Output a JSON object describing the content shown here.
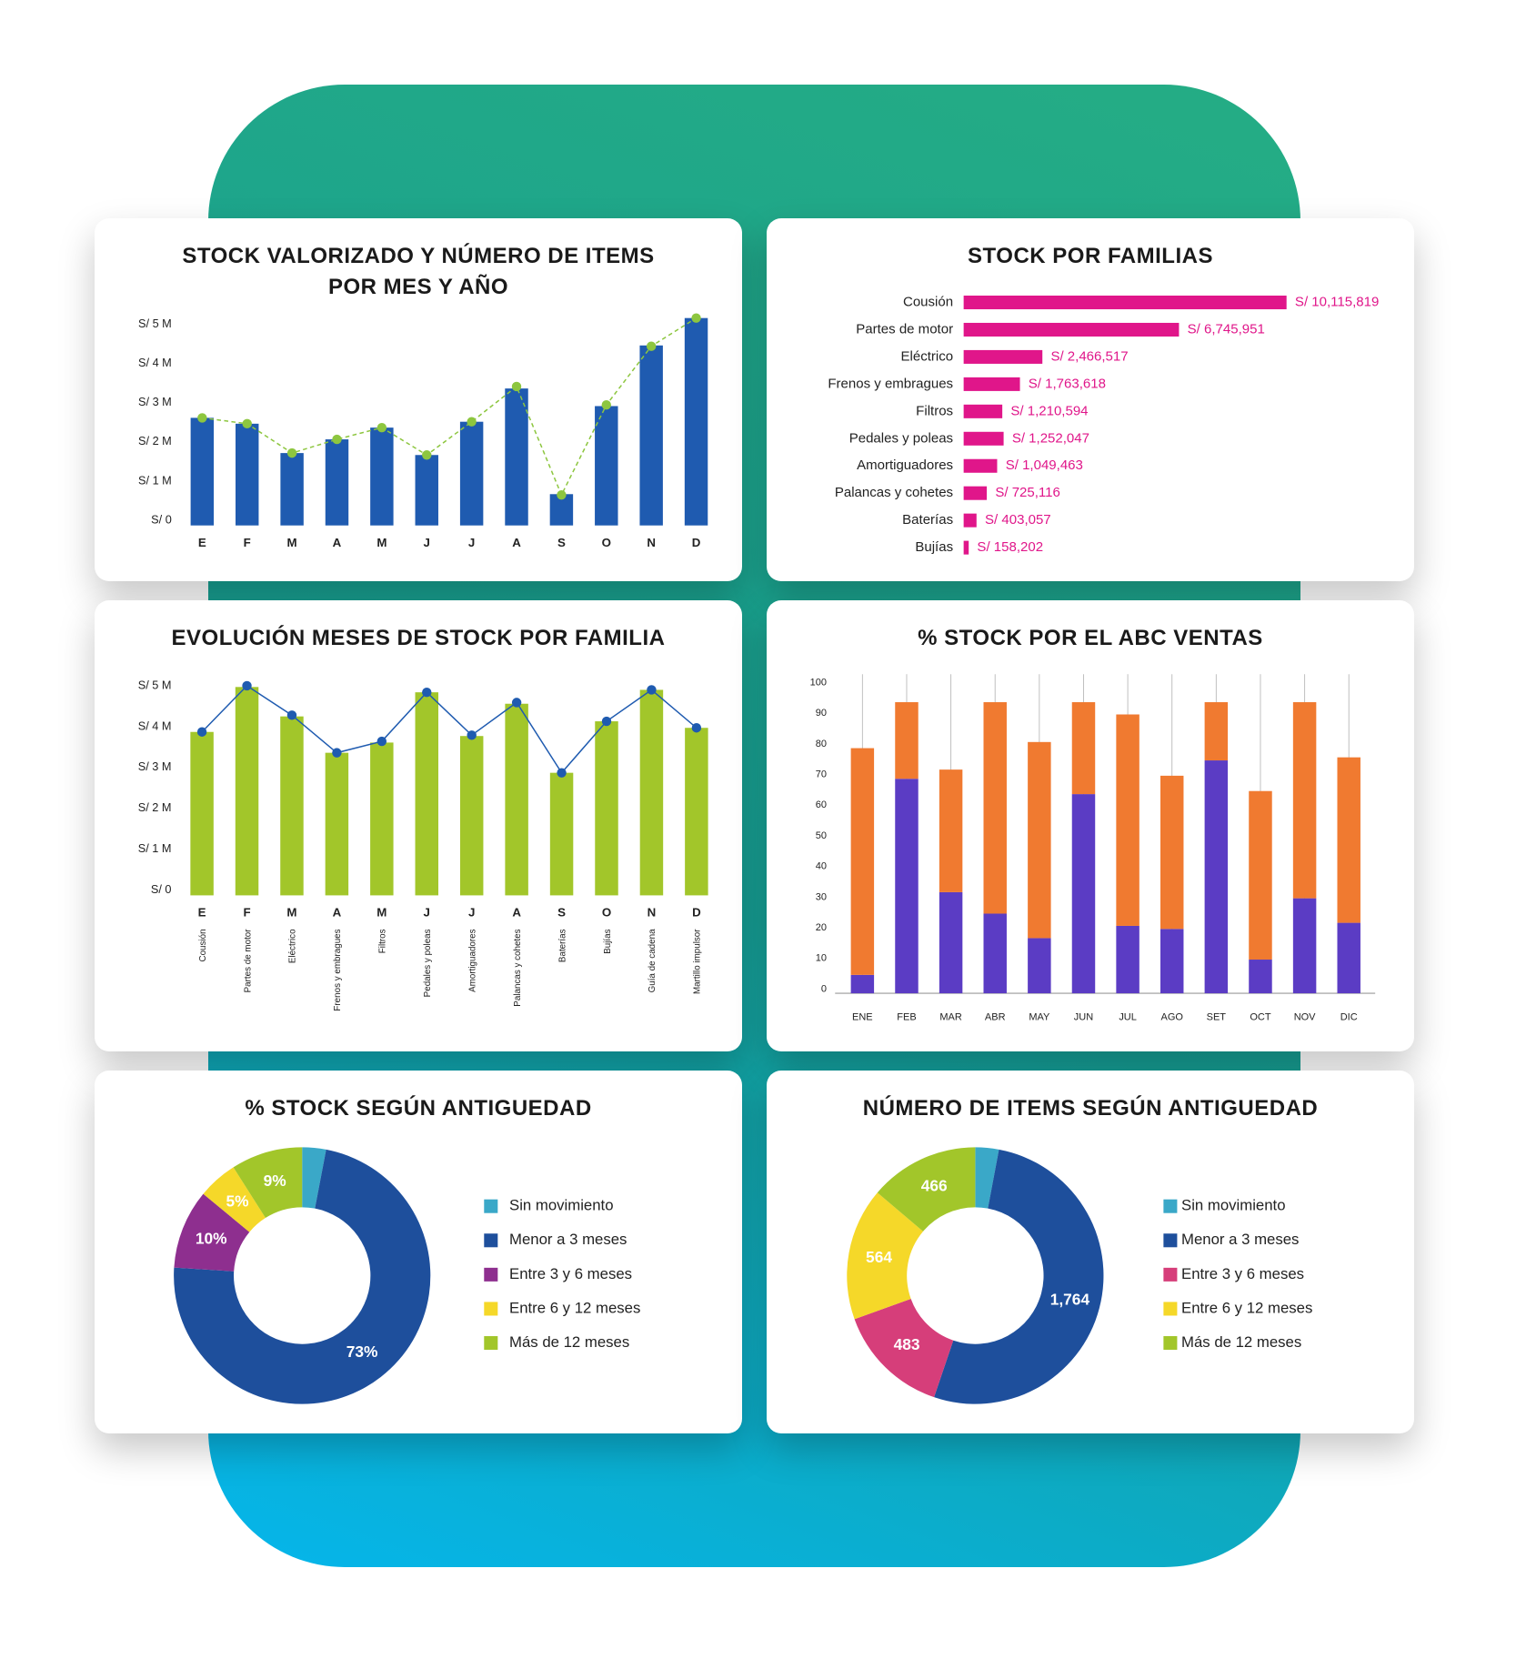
{
  "chart_data": [
    {
      "type": "combo",
      "title": "STOCK VALORIZADO Y NÚMERO DE ITEMS POR MES Y AÑO",
      "categories": [
        "E",
        "F",
        "M",
        "A",
        "M",
        "J",
        "J",
        "A",
        "S",
        "O",
        "N",
        "D"
      ],
      "series": [
        {
          "kind": "bar",
          "color": "#1f5bb0",
          "values": [
            2.75,
            2.6,
            1.85,
            2.2,
            2.5,
            1.8,
            2.65,
            3.5,
            0.8,
            3.05,
            4.6,
            5.3
          ]
        },
        {
          "kind": "line",
          "color": "#8dc63f",
          "line_style": "dashed",
          "values": [
            2.75,
            2.6,
            1.85,
            2.2,
            2.5,
            1.8,
            2.65,
            3.55,
            0.78,
            3.08,
            4.58,
            5.3
          ]
        }
      ],
      "ylim": [
        0,
        5.4
      ],
      "yticks": [
        {
          "value": 0,
          "label": "S/ 0"
        },
        {
          "value": 1,
          "label": "S/ 1 M"
        },
        {
          "value": 2,
          "label": "S/ 2 M"
        },
        {
          "value": 3,
          "label": "S/ 3 M"
        },
        {
          "value": 4,
          "label": "S/ 4 M"
        },
        {
          "value": 5,
          "label": "S/ 5 M"
        }
      ]
    },
    {
      "type": "hbar",
      "title": "STOCK POR FAMILIAS",
      "categories": [
        "Cousión",
        "Partes de motor",
        "Eléctrico",
        "Frenos y embragues",
        "Filtros",
        "Pedales y poleas",
        "Amortiguadores",
        "Palancas y cohetes",
        "Baterías",
        "Bujías"
      ],
      "values": [
        10115819,
        6745951,
        2466517,
        1763618,
        1210594,
        1252047,
        1049463,
        725116,
        403057,
        158202
      ],
      "value_labels": [
        "S/ 10,115,819",
        "S/ 6,745,951",
        "S/ 2,466,517",
        "S/ 1,763,618",
        "S/ 1,210,594",
        "S/ 1,252,047",
        "S/ 1,049,463",
        "S/ 725,116",
        "S/ 403,057",
        "S/ 158,202"
      ],
      "color": "#e0168a"
    },
    {
      "type": "combo",
      "title": "EVOLUCIÓN MESES DE STOCK POR FAMILIA",
      "categories": [
        "E",
        "F",
        "M",
        "A",
        "M",
        "J",
        "J",
        "A",
        "S",
        "O",
        "N",
        "D"
      ],
      "families": [
        "Cousión",
        "Partes de motor",
        "Eléctrico",
        "Frenos y embragues",
        "Filtros",
        "Pedales y poleas",
        "Amortiguadores",
        "Palancas y cohetes",
        "Baterías",
        "Bujías",
        "Guía de cadena",
        "Martillo impulsor"
      ],
      "series": [
        {
          "kind": "bar",
          "color": "#a2c62a",
          "values": [
            4.0,
            5.1,
            4.38,
            3.49,
            3.74,
            4.97,
            3.9,
            4.69,
            3.0,
            4.26,
            5.03,
            4.1
          ]
        },
        {
          "kind": "line",
          "color": "#1f5bb0",
          "line_style": "solid",
          "values": [
            4.0,
            5.13,
            4.41,
            3.49,
            3.77,
            4.97,
            3.92,
            4.72,
            3.0,
            4.26,
            5.03,
            4.1
          ]
        }
      ],
      "ylim": [
        0,
        5.4
      ],
      "yticks": [
        {
          "value": 0,
          "label": "S/ 0"
        },
        {
          "value": 1,
          "label": "S/ 1 M"
        },
        {
          "value": 2,
          "label": "S/ 2 M"
        },
        {
          "value": 3,
          "label": "S/ 3 M"
        },
        {
          "value": 4,
          "label": "S/ 4 M"
        },
        {
          "value": 5,
          "label": "S/ 5 M"
        }
      ]
    },
    {
      "type": "stacked",
      "title": "% STOCK POR EL ABC VENTAS",
      "categories": [
        "ENE",
        "FEB",
        "MAR",
        "ABR",
        "MAY",
        "JUN",
        "JUL",
        "AGO",
        "SET",
        "OCT",
        "NOV",
        "DIC"
      ],
      "series": [
        {
          "color": "#5b3cc4",
          "values": [
            6,
            70,
            33,
            26,
            18,
            65,
            22,
            21,
            76,
            11,
            31,
            23
          ]
        },
        {
          "color": "#f07a30",
          "values": [
            74,
            25,
            40,
            69,
            64,
            30,
            69,
            50,
            19,
            55,
            64,
            54
          ]
        }
      ],
      "ylim": [
        0,
        100
      ],
      "yticks": [
        0,
        10,
        20,
        30,
        40,
        50,
        60,
        70,
        80,
        90,
        100
      ],
      "grid": true
    },
    {
      "type": "donut",
      "title": "% STOCK SEGÚN ANTIGUEDAD",
      "categories": [
        "Sin movimiento",
        "Menor a 3 meses",
        "Entre 3 y 6 meses",
        "Entre 6 y 12 meses",
        "Más de 12 meses"
      ],
      "values": [
        3,
        73,
        10,
        5,
        9
      ],
      "value_labels": [
        null,
        "73%",
        "10%",
        "5%",
        "9%"
      ],
      "colors": [
        "#3aa8c8",
        "#1e4f9c",
        "#8e2f8f",
        "#f5d829",
        "#a2c62a"
      ]
    },
    {
      "type": "donut",
      "title": "NÚMERO DE ITEMS SEGÚN ANTIGUEDAD",
      "categories": [
        "Sin movimiento",
        "Menor a 3 meses",
        "Entre 3 y 6 meses",
        "Entre 6 y 12 meses",
        "Más de 12 meses"
      ],
      "values": [
        100,
        1764,
        483,
        564,
        466
      ],
      "value_labels": [
        null,
        "1,764",
        "483",
        "564",
        "466"
      ],
      "colors": [
        "#3aa8c8",
        "#1e4f9c",
        "#d63e7a",
        "#f5d829",
        "#a2c62a"
      ]
    }
  ]
}
